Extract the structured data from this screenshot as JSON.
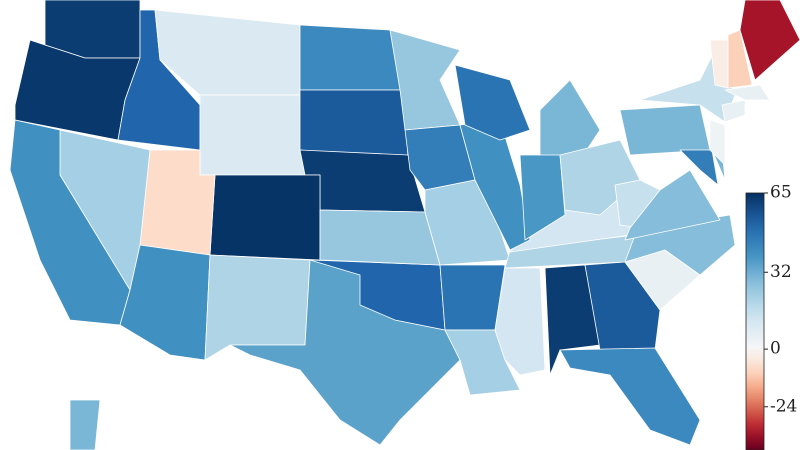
{
  "chart_data": {
    "type": "choropleth",
    "values": [
      62,
      63,
      52,
      10,
      10,
      42,
      55,
      62,
      64,
      -8,
      22,
      40,
      40,
      20,
      35,
      52,
      25,
      25,
      45,
      22,
      48,
      22,
      12,
      62,
      55,
      42,
      5,
      28,
      20,
      12,
      40,
      48,
      30,
      38,
      20,
      15,
      28,
      30,
      15,
      45,
      30,
      3,
      5,
      5,
      -3,
      -10,
      -35,
      30
    ],
    "clim": [
      -42,
      65
    ],
    "colorbar_ticks": [
      65,
      32,
      0,
      -24
    ]
  }
}
